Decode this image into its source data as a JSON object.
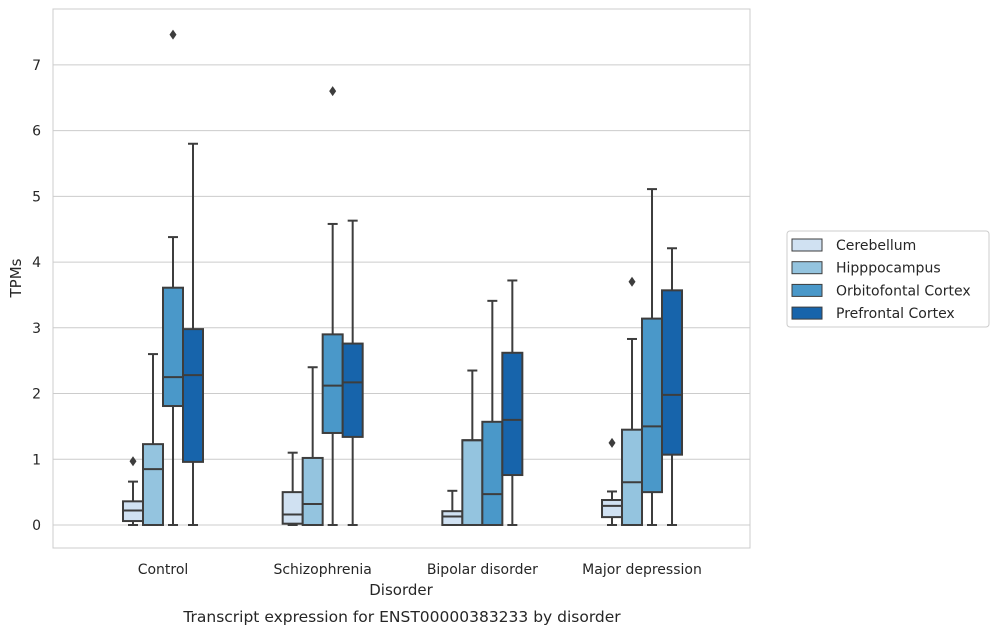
{
  "chart_data": {
    "type": "box",
    "title": "",
    "caption": "Transcript expression for ENST00000383233 by disorder",
    "xlabel": "Disorder",
    "ylabel": "TPMs",
    "ylim": [
      -0.35,
      7.85
    ],
    "yticks": [
      0,
      1,
      2,
      3,
      4,
      5,
      6,
      7
    ],
    "grid": "horizontal",
    "legend_position": "right",
    "categories": [
      "Control",
      "Schizophrenia",
      "Bipolar disorder",
      "Major depression"
    ],
    "series": [
      {
        "name": "Cerebellum",
        "color": "#d0e1f2",
        "boxes": [
          {
            "whislo": 0.0,
            "q1": 0.06,
            "med": 0.22,
            "q3": 0.36,
            "whishi": 0.66,
            "fliers": [
              0.97
            ]
          },
          {
            "whislo": 0.0,
            "q1": 0.02,
            "med": 0.16,
            "q3": 0.5,
            "whishi": 1.1,
            "fliers": []
          },
          {
            "whislo": 0.0,
            "q1": 0.0,
            "med": 0.13,
            "q3": 0.21,
            "whishi": 0.52,
            "fliers": []
          },
          {
            "whislo": 0.0,
            "q1": 0.12,
            "med": 0.29,
            "q3": 0.38,
            "whishi": 0.51,
            "fliers": [
              1.25
            ]
          }
        ]
      },
      {
        "name": "Hipppocampus",
        "color": "#94c4df",
        "boxes": [
          {
            "whislo": 0.0,
            "q1": 0.0,
            "med": 0.85,
            "q3": 1.23,
            "whishi": 2.6,
            "fliers": []
          },
          {
            "whislo": 0.0,
            "q1": 0.0,
            "med": 0.32,
            "q3": 1.02,
            "whishi": 2.4,
            "fliers": []
          },
          {
            "whislo": 0.0,
            "q1": 0.0,
            "med": 1.29,
            "q3": 1.29,
            "whishi": 2.35,
            "fliers": []
          },
          {
            "whislo": 0.0,
            "q1": 0.0,
            "med": 0.65,
            "q3": 1.45,
            "whishi": 2.83,
            "fliers": [
              3.7
            ]
          }
        ]
      },
      {
        "name": "Orbitofontal Cortex",
        "color": "#4a98c9",
        "boxes": [
          {
            "whislo": 0.0,
            "q1": 1.81,
            "med": 2.25,
            "q3": 3.61,
            "whishi": 4.38,
            "fliers": [
              7.46
            ]
          },
          {
            "whislo": 0.0,
            "q1": 1.4,
            "med": 2.12,
            "q3": 2.9,
            "whishi": 4.58,
            "fliers": [
              6.6
            ]
          },
          {
            "whislo": 0.0,
            "q1": 0.0,
            "med": 0.47,
            "q3": 1.57,
            "whishi": 3.41,
            "fliers": []
          },
          {
            "whislo": 0.0,
            "q1": 0.5,
            "med": 1.5,
            "q3": 3.14,
            "whishi": 5.11,
            "fliers": []
          }
        ]
      },
      {
        "name": "Prefrontal Cortex",
        "color": "#1764ab",
        "boxes": [
          {
            "whislo": 0.0,
            "q1": 0.96,
            "med": 2.28,
            "q3": 2.98,
            "whishi": 5.8,
            "fliers": []
          },
          {
            "whislo": 0.0,
            "q1": 1.34,
            "med": 2.17,
            "q3": 2.76,
            "whishi": 4.63,
            "fliers": []
          },
          {
            "whislo": 0.0,
            "q1": 0.76,
            "med": 1.6,
            "q3": 2.62,
            "whishi": 3.72,
            "fliers": []
          },
          {
            "whislo": 0.0,
            "q1": 1.07,
            "med": 1.98,
            "q3": 3.57,
            "whishi": 4.21,
            "fliers": []
          }
        ]
      }
    ]
  },
  "colors": {
    "grid": "#cccccc",
    "frame": "#cccccc",
    "line": "#3d3d3d",
    "text": "#262626"
  }
}
